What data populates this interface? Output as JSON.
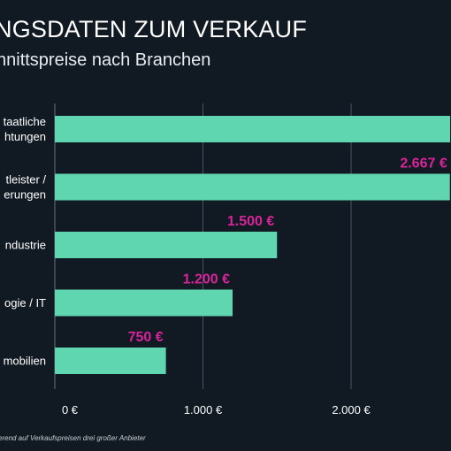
{
  "header": {
    "title": "NGSDATEN ZUM VERKAUF",
    "subtitle": "nnittspreise nach Branchen"
  },
  "footnote": "erend auf Verkaufspreisen drei großer Anbieter",
  "colors": {
    "background": "#111a22",
    "bar": "#5fd6b0",
    "value_label": "#d9239a",
    "gridline": "#4a5366",
    "text": "#ffffff"
  },
  "chart_data": {
    "type": "bar",
    "orientation": "horizontal",
    "categories": [
      [
        "taatliche",
        "htungen"
      ],
      [
        "tleister /",
        "erungen"
      ],
      [
        "ndustrie"
      ],
      [
        "ogie / IT"
      ],
      [
        "mobilien"
      ]
    ],
    "values": [
      3000,
      2667,
      1500,
      1200,
      750
    ],
    "value_labels": [
      "",
      "2.667 €",
      "1.500 €",
      "1.200 €",
      "750 €"
    ],
    "x_ticks": [
      {
        "value": 0,
        "label": "0 €"
      },
      {
        "value": 1000,
        "label": "1.000 €"
      },
      {
        "value": 2000,
        "label": "2.000 €"
      }
    ],
    "xlim": [
      0,
      2700
    ],
    "grid": true,
    "legend": "none"
  }
}
